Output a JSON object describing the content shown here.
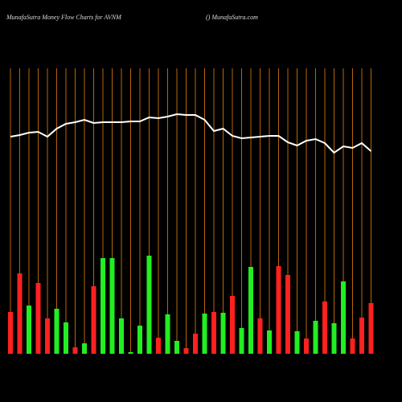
{
  "chart_data": {
    "type": "money-flow",
    "title": "MunafaSutra  Money Flow  Charts for AVNM",
    "subtitle": "() MunafaSutra.com",
    "categories": [
      null,
      null,
      null,
      null,
      null,
      null,
      null,
      null,
      null,
      null,
      null,
      null,
      null,
      null,
      null,
      null,
      null,
      null,
      null,
      null,
      null,
      null,
      null,
      null,
      null,
      null,
      null,
      null,
      null,
      null,
      null,
      null,
      null,
      null,
      null,
      null,
      null,
      null,
      null,
      null
    ],
    "ylim": [
      0,
      440
    ],
    "grid_color": "#b8660b",
    "bars": {
      "values": [
        52,
        100,
        60,
        88,
        44,
        56,
        39,
        8,
        13,
        84,
        119,
        119,
        44,
        2,
        35,
        122,
        20,
        49,
        16,
        7,
        25,
        50,
        52,
        51,
        72,
        32,
        108,
        44,
        29,
        109,
        98,
        28,
        19,
        41,
        65,
        38,
        90,
        19,
        45,
        63
      ],
      "colors": [
        "#ff2020",
        "#ff2020",
        "#22ee22",
        "#ff2020",
        "#ff2020",
        "#22ee22",
        "#22ee22",
        "#ff2020",
        "#22ee22",
        "#ff2020",
        "#22ee22",
        "#22ee22",
        "#22ee22",
        "#22ee22",
        "#22ee22",
        "#22ee22",
        "#ff2020",
        "#22ee22",
        "#22ee22",
        "#ff2020",
        "#ff2020",
        "#22ee22",
        "#ff2020",
        "#22ee22",
        "#ff2020",
        "#22ee22",
        "#22ee22",
        "#ff2020",
        "#22ee22",
        "#ff2020",
        "#ff2020",
        "#22ee22",
        "#ff2020",
        "#22ee22",
        "#ff2020",
        "#22ee22",
        "#22ee22",
        "#ff2020",
        "#ff2020",
        "#ff2020"
      ]
    },
    "line": {
      "color": "#ffffff",
      "values": [
        270,
        272,
        275,
        276,
        270,
        280,
        286,
        288,
        291,
        287,
        288,
        288,
        288,
        289,
        289,
        294,
        293,
        295,
        298,
        297,
        297,
        291,
        277,
        280,
        271,
        268,
        269,
        270,
        271,
        271,
        263,
        259,
        265,
        267,
        262,
        250,
        258,
        256,
        262,
        252
      ]
    }
  }
}
